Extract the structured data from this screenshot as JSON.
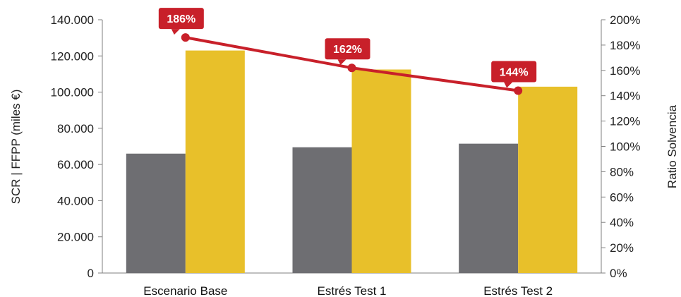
{
  "chart_data": {
    "type": "bar",
    "categories": [
      "Escenario Base",
      "Estrés Test 1",
      "Estrés Test 2"
    ],
    "series": [
      {
        "values": [
          66000,
          69500,
          71500
        ],
        "axis": "left",
        "color": "#6e6e72"
      },
      {
        "values": [
          123000,
          112500,
          103000
        ],
        "axis": "left",
        "color": "#e8c02a"
      },
      {
        "values": [
          186,
          162,
          144
        ],
        "axis": "right",
        "type": "line",
        "color": "#c8202a",
        "value_labels": [
          "186%",
          "162%",
          "144%"
        ]
      }
    ],
    "ylabel": "SCR | FFPP (miles €)",
    "y2label": "Ratio Solvencia",
    "ylim": [
      0,
      140000
    ],
    "y2lim": [
      0,
      200
    ],
    "y_ticks": [
      "0",
      "20.000",
      "40.000",
      "60.000",
      "80.000",
      "100.000",
      "120.000",
      "140.000"
    ],
    "y2_ticks": [
      "0%",
      "20%",
      "40%",
      "60%",
      "80%",
      "100%",
      "120%",
      "140%",
      "160%",
      "180%",
      "200%"
    ],
    "grid": false
  }
}
